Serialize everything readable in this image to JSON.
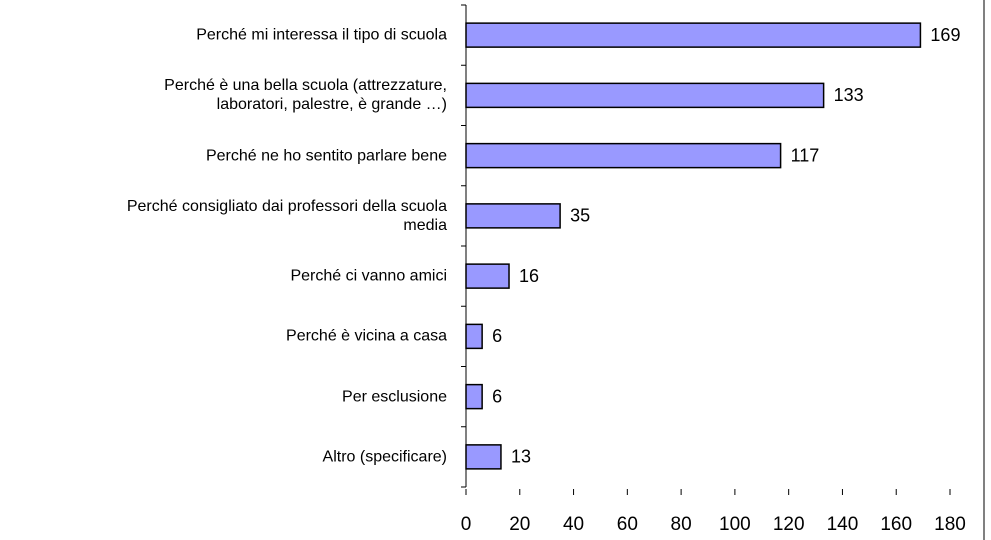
{
  "chart_data": {
    "type": "bar",
    "orientation": "horizontal",
    "categories": [
      "Perché mi interessa il tipo di scuola",
      "Perché è una bella scuola (attrezzature,\nlaboratori, palestre, è grande …)",
      "Perché ne ho sentito parlare bene",
      "Perché consigliato dai professori della scuola\nmedia",
      "Perché ci vanno amici",
      "Perché è vicina a casa",
      "Per esclusione",
      "Altro (specificare)"
    ],
    "values": [
      169,
      133,
      117,
      35,
      16,
      6,
      6,
      13
    ],
    "color": "#9999ff",
    "xlim": [
      0,
      180
    ],
    "xticks": [
      0,
      20,
      40,
      60,
      80,
      100,
      120,
      140,
      160,
      180
    ]
  }
}
